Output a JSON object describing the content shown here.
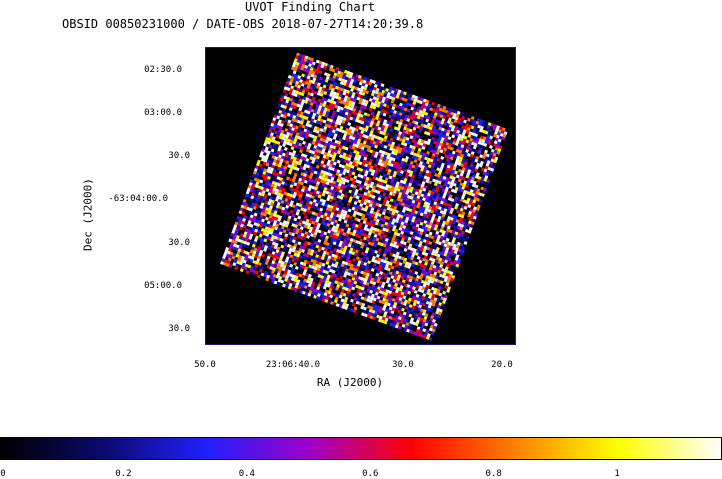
{
  "header": {
    "title": "UVOT Finding Chart",
    "subtitle": "OBSID 00850231000 / DATE-OBS 2018-07-27T14:20:39.8"
  },
  "axes": {
    "x_label": "RA (J2000)",
    "y_label": "Dec (J2000)",
    "x_ticks": [
      "50.0",
      "23:06:40.0",
      "30.0",
      "20.0"
    ],
    "y_ticks": [
      "02:30.0",
      "03:00.0",
      "30.0",
      "-63:04:00.0",
      "30.0",
      "05:00.0",
      "30.0"
    ]
  },
  "image": {
    "background_color": "#000000",
    "frame_color": "#1a1a7a",
    "tile_rotation_deg": 20,
    "content": "noise-field"
  },
  "colorbar": {
    "ticks": [
      "0",
      "0.2",
      "0.4",
      "0.6",
      "0.8",
      "1"
    ],
    "tick_values": [
      0,
      0.2,
      0.4,
      0.6,
      0.8,
      1
    ],
    "range": [
      0,
      1.17
    ],
    "colormap": [
      "#000000",
      "#0a0a6e",
      "#2020ff",
      "#a000c8",
      "#ff0000",
      "#ff8000",
      "#ffff00",
      "#ffffff"
    ]
  }
}
